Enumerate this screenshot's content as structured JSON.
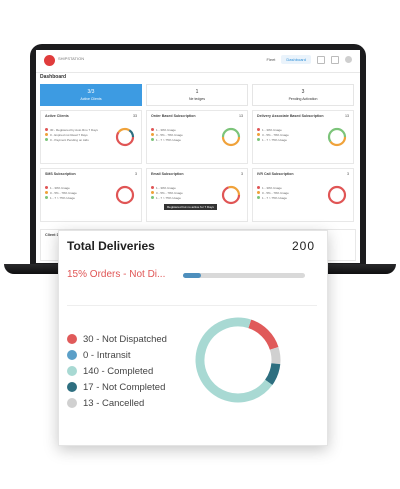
{
  "app": {
    "brand_text": "SHIPSTATION",
    "nav": {
      "item1": "Fleet",
      "item2": "Dashboard"
    },
    "page_title": "Dashboard"
  },
  "tabs": [
    {
      "number": "3/3",
      "label": "Active Clients"
    },
    {
      "number": "1",
      "label": "Ne tedges"
    },
    {
      "number": "3",
      "label": "Pending Activation"
    }
  ],
  "cards": [
    {
      "title": "Active Clients",
      "count": "33",
      "legend": [
        "30 - Registered by Auto Rno 7 Days",
        "0 - Expired not Read 7 Days",
        "0 - Payment Pending on Aids"
      ]
    },
    {
      "title": "Order Based Subscription",
      "count": "13",
      "legend": [
        "1 - 30% Usage",
        "0 - 5% - 79% Usage",
        "1 - 7 > 75% Usage"
      ]
    },
    {
      "title": "Delivery Associate Based Subscription",
      "count": "13",
      "legend": [
        "1 - 30% Usage",
        "3 - 5% - 79% Usage",
        "1 - 7 > 75% Usage"
      ]
    },
    {
      "title": "SMS Subscription",
      "count": "3",
      "legend": [
        "1 - 30% Usage",
        "0 - 5% - 79% Usage",
        "1 - 7 > 75% Usage"
      ]
    },
    {
      "title": "Email Subscription",
      "count": "3",
      "legend": [
        "1 - 30% Usage",
        "0 - 5% - 79% Usage",
        "1 - 7 > 75% Usage"
      ]
    },
    {
      "title": "IVR Call Subscription",
      "count": "3",
      "legend": [
        "1 - 30% Usage",
        "0 - 5% - 79% Usage",
        "1 - 7 > 75% Usage"
      ]
    }
  ],
  "tooltip": "Registered but no active for 7 Days",
  "client_section_title": "Client Di",
  "popup": {
    "title": "Total Deliveries",
    "total": "200",
    "subtitle": "15% Orders - Not Di...",
    "progress_fraction": 0.15,
    "legend": [
      {
        "label": "30 - Not Dispatched",
        "value": 30,
        "color": "#e05a5a"
      },
      {
        "label": "0 - Intransit",
        "value": 0,
        "color": "#5b9fc8"
      },
      {
        "label": "140 - Completed",
        "value": 140,
        "color": "#a8d9d3"
      },
      {
        "label": "17 - Not Completed",
        "value": 17,
        "color": "#2e6f80"
      },
      {
        "label": "13 - Cancelled",
        "value": 13,
        "color": "#d0d0d0"
      }
    ]
  },
  "colors": {
    "accent": "#3d9be2",
    "red": "#e05555",
    "orange": "#f0a23a",
    "green": "#7cc47a"
  }
}
